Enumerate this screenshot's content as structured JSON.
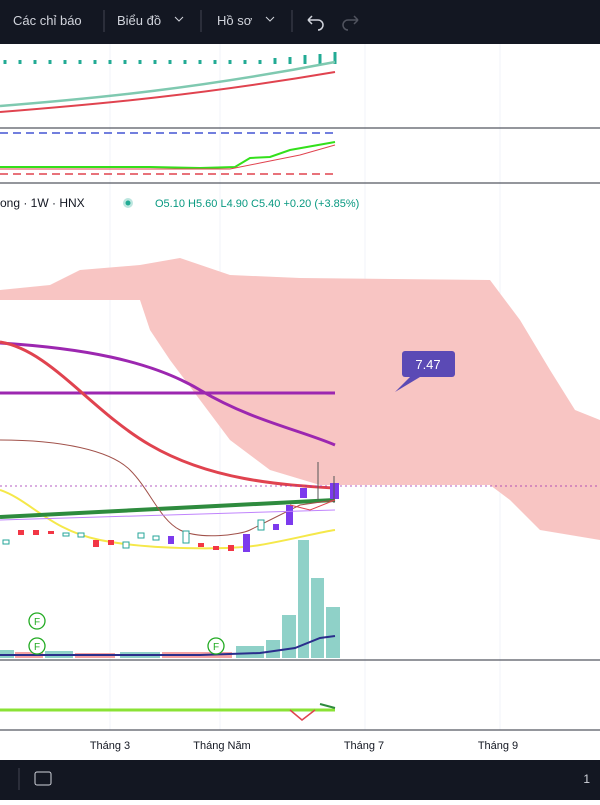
{
  "toolbar": {
    "indicators": "Các chỉ báo",
    "chart": "Biểu đồ",
    "profile": "Hồ sơ"
  },
  "legend": {
    "symbol": "ong · 1W · HNX",
    "open": "O5.10",
    "high": "H5.60",
    "low": "L4.90",
    "close": "C5.40",
    "change": "+0.20 (+3.85%)"
  },
  "price_label": "7.47",
  "markers": [
    "F",
    "F",
    "F"
  ],
  "x_axis": [
    "Tháng 3",
    "Tháng Năm",
    "Tháng 7",
    "Tháng 9"
  ],
  "status": {
    "right": "1"
  }
}
